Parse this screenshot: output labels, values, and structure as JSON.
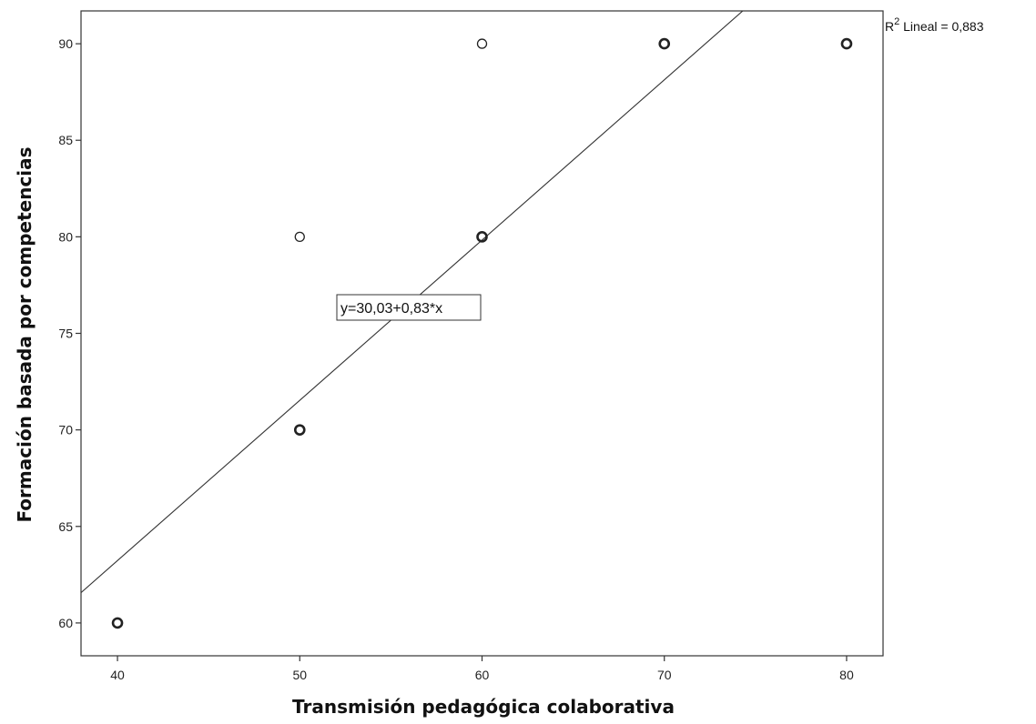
{
  "chart_data": {
    "type": "scatter",
    "title": "",
    "xlabel": "Transmisión pedagógica colaborativa",
    "ylabel": "Formación basada por competencias",
    "xlim": [
      38,
      82
    ],
    "ylim": [
      58.3,
      91.7
    ],
    "x_ticks": [
      40,
      50,
      60,
      70,
      80
    ],
    "y_ticks": [
      60,
      65,
      70,
      75,
      80,
      85,
      90
    ],
    "grid": false,
    "points": [
      {
        "x": 40,
        "y": 60,
        "bold": true
      },
      {
        "x": 50,
        "y": 70,
        "bold": true
      },
      {
        "x": 50,
        "y": 80,
        "bold": false
      },
      {
        "x": 60,
        "y": 80,
        "bold": true
      },
      {
        "x": 60,
        "y": 90,
        "bold": false
      },
      {
        "x": 70,
        "y": 90,
        "bold": true
      },
      {
        "x": 80,
        "y": 90,
        "bold": true
      }
    ],
    "fit_line": {
      "intercept": 30.03,
      "slope": 0.83
    },
    "equation_label": "y=30,03+0,83*x",
    "r2_label": {
      "prefix": "R",
      "superscript": "2",
      "text": " Lineal = 0,883"
    }
  }
}
